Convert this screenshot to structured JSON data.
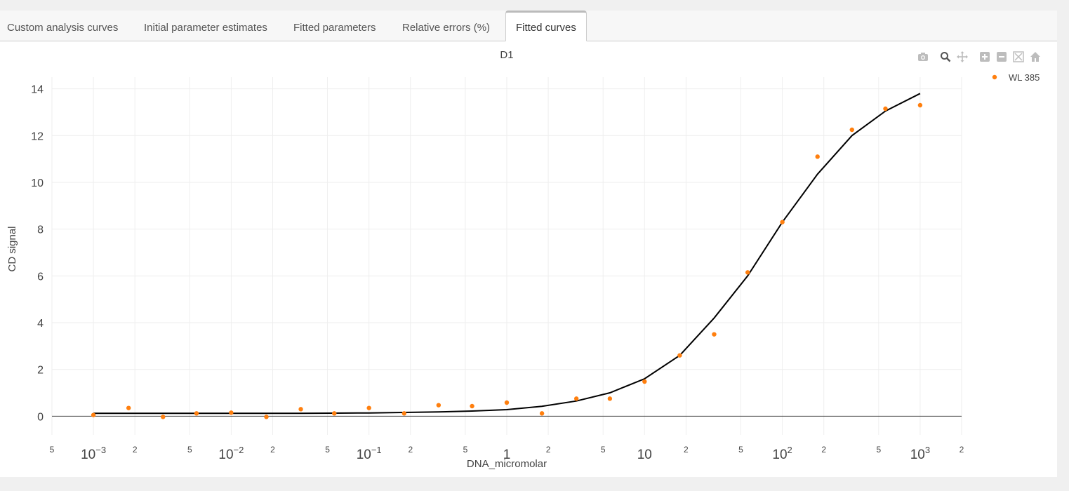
{
  "tabs": [
    {
      "label": "Custom analysis curves",
      "active": false
    },
    {
      "label": "Initial parameter estimates",
      "active": false
    },
    {
      "label": "Fitted parameters",
      "active": false
    },
    {
      "label": "Relative errors (%)",
      "active": false
    },
    {
      "label": "Fitted curves",
      "active": true
    }
  ],
  "modebar": [
    "camera-icon",
    "zoom-icon",
    "pan-icon",
    "zoom-in-icon",
    "zoom-out-icon",
    "autoscale-icon",
    "reset-axes-icon"
  ],
  "chart_data": {
    "type": "scatter",
    "title": "D1",
    "xlabel": "DNA_micromolar",
    "ylabel": "CD signal",
    "x_scale": "log",
    "xlim": [
      0.0005,
      2000
    ],
    "ylim": [
      -0.8,
      14.5
    ],
    "y_ticks": [
      0,
      2,
      4,
      6,
      8,
      10,
      12,
      14
    ],
    "x_major_ticks": [
      {
        "value": 0.001,
        "base": "10",
        "exp": "−3"
      },
      {
        "value": 0.01,
        "base": "10",
        "exp": "−2"
      },
      {
        "value": 0.1,
        "base": "10",
        "exp": "−1"
      },
      {
        "value": 1,
        "base": "1",
        "exp": ""
      },
      {
        "value": 10,
        "base": "10",
        "exp": ""
      },
      {
        "value": 100,
        "base": "10",
        "exp": "2"
      },
      {
        "value": 1000,
        "base": "10",
        "exp": "3"
      }
    ],
    "x_minor_ticks": [
      {
        "value": 0.0005,
        "label": "5"
      },
      {
        "value": 0.002,
        "label": "2"
      },
      {
        "value": 0.005,
        "label": "5"
      },
      {
        "value": 0.02,
        "label": "2"
      },
      {
        "value": 0.05,
        "label": "5"
      },
      {
        "value": 0.2,
        "label": "2"
      },
      {
        "value": 0.5,
        "label": "5"
      },
      {
        "value": 2,
        "label": "2"
      },
      {
        "value": 5,
        "label": "5"
      },
      {
        "value": 20,
        "label": "2"
      },
      {
        "value": 50,
        "label": "5"
      },
      {
        "value": 200,
        "label": "2"
      },
      {
        "value": 500,
        "label": "5"
      },
      {
        "value": 2000,
        "label": "2"
      }
    ],
    "grid": true,
    "legend_position": "top-right",
    "series": [
      {
        "name": "WL 385",
        "mode": "markers",
        "color": "#ff7f0e",
        "x": [
          0.001,
          0.0018,
          0.0032,
          0.0056,
          0.01,
          0.018,
          0.032,
          0.056,
          0.1,
          0.18,
          0.32,
          0.56,
          1,
          1.8,
          3.2,
          5.6,
          10,
          18,
          32,
          56,
          100,
          180,
          320,
          560,
          1000
        ],
        "y": [
          0.05,
          0.35,
          -0.03,
          0.12,
          0.15,
          -0.03,
          0.3,
          0.12,
          0.35,
          0.12,
          0.47,
          0.43,
          0.58,
          0.12,
          0.75,
          0.75,
          1.48,
          2.6,
          3.5,
          6.15,
          8.3,
          11.1,
          12.25,
          13.15,
          13.3
        ]
      },
      {
        "name": "",
        "mode": "lines",
        "color": "#000000",
        "x": [
          0.001,
          0.0018,
          0.0032,
          0.0056,
          0.01,
          0.018,
          0.032,
          0.056,
          0.1,
          0.18,
          0.32,
          0.56,
          1,
          1.8,
          3.2,
          5.6,
          10,
          18,
          32,
          56,
          100,
          180,
          320,
          560,
          1000
        ],
        "y": [
          0.12,
          0.12,
          0.12,
          0.12,
          0.12,
          0.12,
          0.12,
          0.13,
          0.14,
          0.16,
          0.18,
          0.22,
          0.28,
          0.42,
          0.65,
          1.0,
          1.6,
          2.6,
          4.2,
          6.0,
          8.3,
          10.35,
          12.0,
          13.05,
          13.8
        ]
      }
    ],
    "legend": [
      {
        "name": "WL 385",
        "color": "#ff7f0e"
      }
    ]
  }
}
